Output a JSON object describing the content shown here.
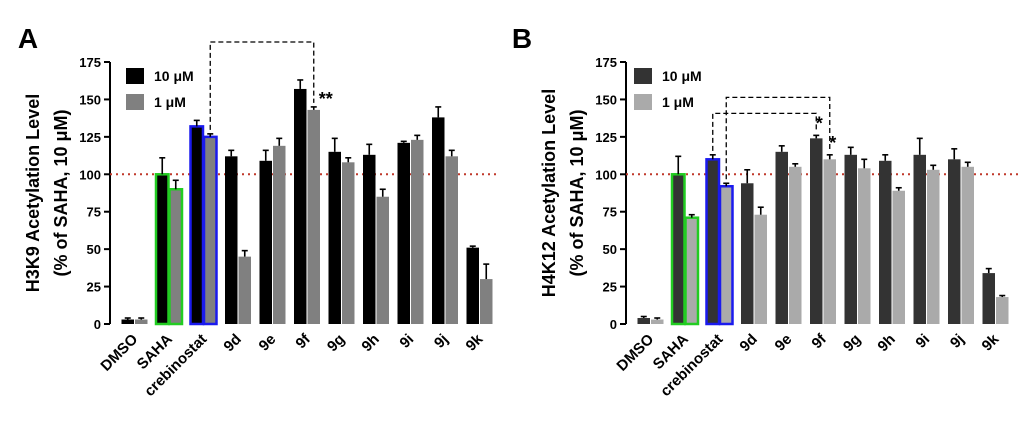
{
  "reference_line": 100,
  "colors": {
    "saha_outline": "#22cc22",
    "crebinostat_outline": "#1a1aee",
    "reference_line": "#c0392b"
  },
  "chart_data": [
    {
      "panel": "A",
      "type": "bar",
      "ylabel": [
        "H3K9 Acetylation Level",
        "(% of SAHA, 10 μM)"
      ],
      "ylim": [
        0,
        175
      ],
      "yticks": [
        0,
        25,
        50,
        75,
        100,
        125,
        150,
        175
      ],
      "categories": [
        "DMSO",
        "SAHA",
        "crebinostat",
        "9d",
        "9e",
        "9f",
        "9g",
        "9h",
        "9i",
        "9j",
        "9k"
      ],
      "series": [
        {
          "name": "10 μM",
          "color": "#000000",
          "values": [
            3,
            100,
            132,
            112,
            109,
            157,
            115,
            113,
            121,
            138,
            51
          ],
          "errors": [
            1,
            11,
            4,
            4,
            7,
            6,
            9,
            7,
            1,
            7,
            1
          ]
        },
        {
          "name": "1 μM",
          "color": "#808080",
          "values": [
            3,
            90,
            125,
            45,
            119,
            143,
            108,
            85,
            123,
            112,
            30
          ],
          "errors": [
            1,
            6,
            2,
            4,
            5,
            2,
            3,
            5,
            3,
            4,
            10
          ]
        }
      ],
      "legend": "top-left",
      "annotations": [
        {
          "text": "**",
          "category": "9f",
          "series": "1 μM"
        }
      ],
      "brackets": [
        {
          "from": "crebinostat",
          "to": "9f",
          "series": "1 μM"
        }
      ]
    },
    {
      "panel": "B",
      "type": "bar",
      "ylabel": [
        "H4K12 Acetylation Level",
        "(% of SAHA, 10 μM)"
      ],
      "ylim": [
        0,
        175
      ],
      "yticks": [
        0,
        25,
        50,
        75,
        100,
        125,
        150,
        175
      ],
      "categories": [
        "DMSO",
        "SAHA",
        "crebinostat",
        "9d",
        "9e",
        "9f",
        "9g",
        "9h",
        "9i",
        "9j",
        "9k"
      ],
      "series": [
        {
          "name": "10 μM",
          "color": "#333333",
          "values": [
            4,
            100,
            110,
            94,
            115,
            124,
            113,
            109,
            113,
            110,
            34
          ],
          "errors": [
            1,
            12,
            3,
            9,
            4,
            2,
            5,
            4,
            11,
            7,
            3
          ]
        },
        {
          "name": "1 μM",
          "color": "#aaaaaa",
          "values": [
            3,
            71,
            92,
            73,
            105,
            110,
            104,
            89,
            103,
            105,
            18
          ],
          "errors": [
            1,
            2,
            2,
            5,
            2,
            3,
            6,
            2,
            3,
            3,
            1
          ]
        }
      ],
      "legend": "top-left",
      "annotations": [
        {
          "text": "*",
          "category": "9f",
          "series": "10 μM"
        },
        {
          "text": "*",
          "category": "9f",
          "series": "1 μM"
        }
      ],
      "brackets": [
        {
          "from": "crebinostat",
          "to": "9f",
          "series": "10 μM"
        },
        {
          "from": "crebinostat",
          "to": "9f",
          "series": "1 μM"
        }
      ]
    }
  ]
}
